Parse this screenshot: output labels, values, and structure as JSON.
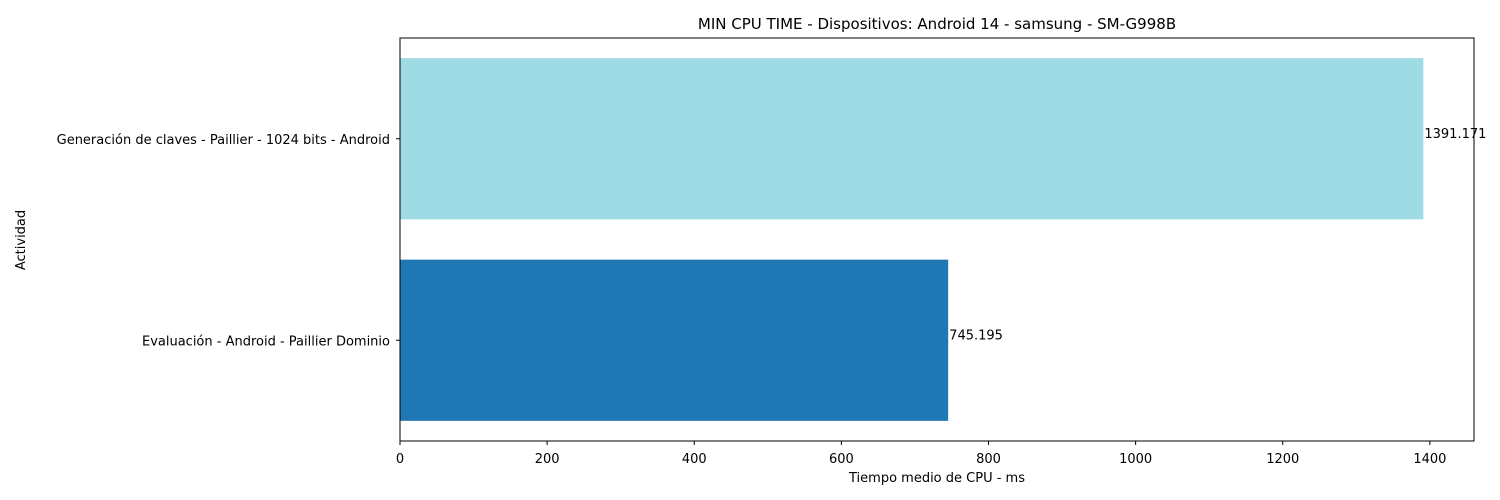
{
  "chart_data": {
    "type": "bar",
    "orientation": "horizontal",
    "title": "MIN CPU TIME - Dispositivos: Android 14 - samsung - SM-G998B",
    "xlabel": "Tiempo medio de CPU - ms",
    "ylabel": "Actividad",
    "xlim": [
      0,
      1460
    ],
    "xticks": [
      0,
      200,
      400,
      600,
      800,
      1000,
      1200,
      1400
    ],
    "grid": false,
    "legend": "none",
    "categories": [
      "Generación de claves - Paillier - 1024 bits - Android",
      "Evaluación - Android - Paillier Dominio"
    ],
    "values": [
      1391.171,
      745.195
    ],
    "data_labels": [
      "1391.171",
      "745.195"
    ],
    "colors": [
      "#9fdbe5",
      "#1f77b4"
    ]
  }
}
